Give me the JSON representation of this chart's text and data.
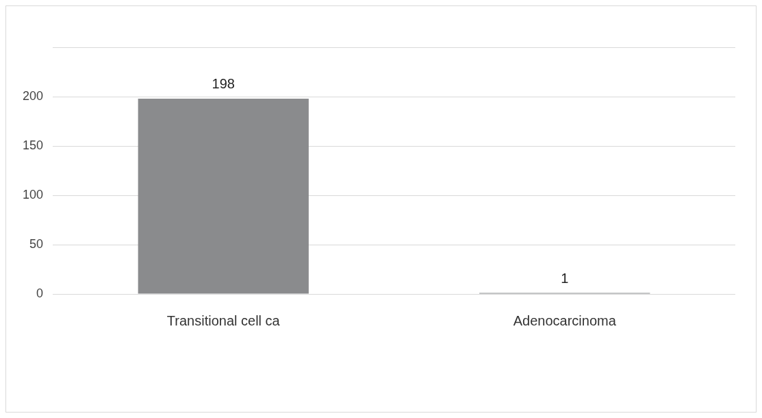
{
  "chart_data": {
    "type": "bar",
    "categories": [
      "Transitional cell ca",
      "Adenocarcinoma"
    ],
    "values": [
      198,
      1
    ],
    "color": "#8a8b8d",
    "ylim": [
      0,
      250
    ],
    "yticks": [
      0,
      50,
      100,
      150,
      200,
      {
        "value": 250,
        "label": null
      }
    ],
    "grid": "y",
    "data_labels": true,
    "legend": false
  }
}
